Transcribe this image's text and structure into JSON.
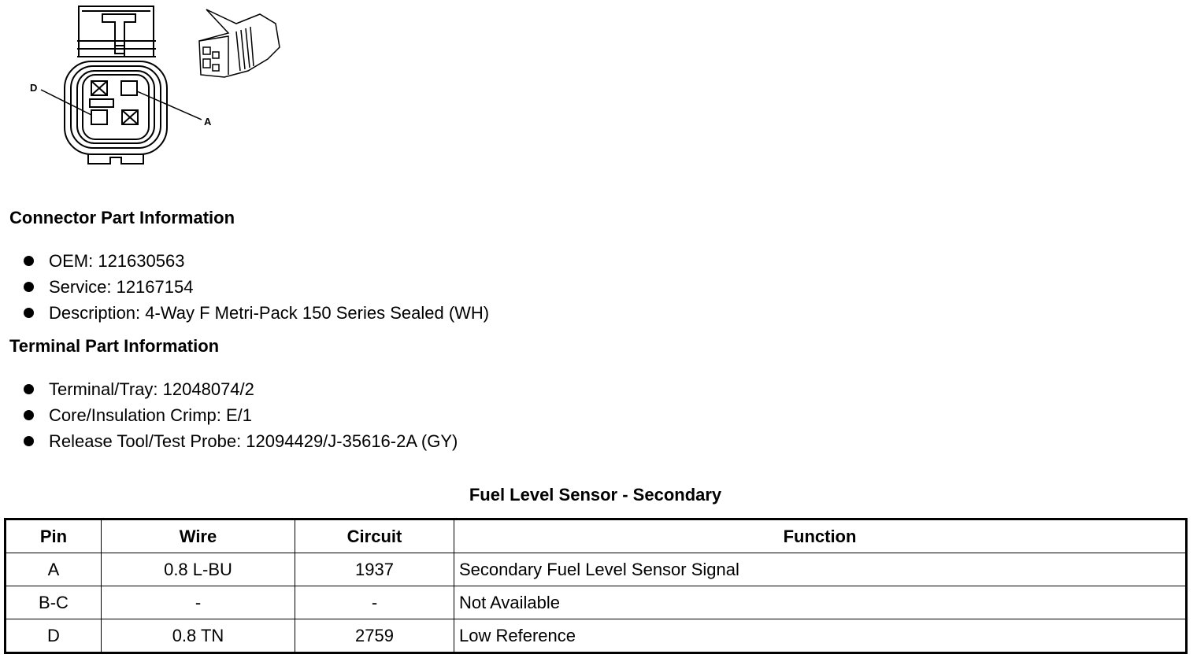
{
  "diagram": {
    "labels": {
      "pin_d": "D",
      "pin_a": "A"
    }
  },
  "connector_part_information": {
    "heading": "Connector Part Information",
    "items": [
      "OEM: 121630563",
      "Service: 12167154",
      "Description: 4-Way F Metri-Pack 150 Series Sealed (WH)"
    ]
  },
  "terminal_part_information": {
    "heading": "Terminal Part Information",
    "items": [
      "Terminal/Tray: 12048074/2",
      "Core/Insulation Crimp: E/1",
      "Release Tool/Test Probe: 12094429/J-35616-2A (GY)"
    ]
  },
  "table": {
    "title": "Fuel Level Sensor - Secondary",
    "headers": [
      "Pin",
      "Wire",
      "Circuit",
      "Function"
    ],
    "rows": [
      [
        "A",
        "0.8 L-BU",
        "1937",
        "Secondary Fuel Level Sensor Signal"
      ],
      [
        "B-C",
        "-",
        "-",
        "Not Available"
      ],
      [
        "D",
        "0.8 TN",
        "2759",
        "Low Reference"
      ]
    ]
  }
}
